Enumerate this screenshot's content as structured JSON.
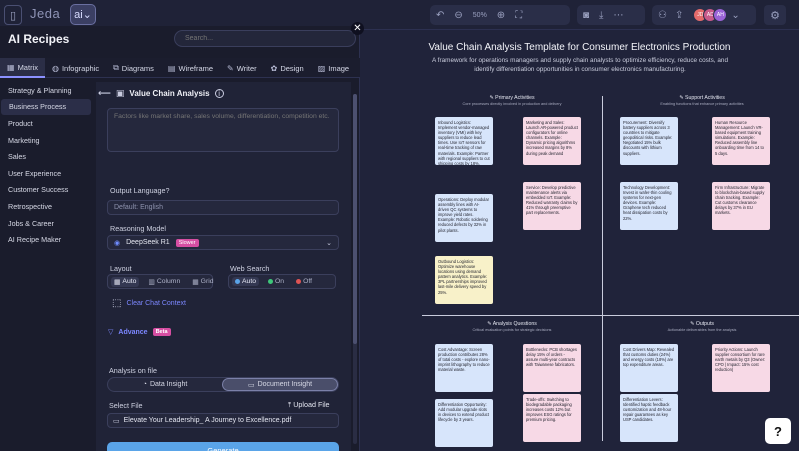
{
  "topbar": {
    "brand": "Jeda",
    "ai_logo": "ai",
    "zoom": "50%",
    "avatars": [
      {
        "initials": "JD",
        "color": "#e46b6b"
      },
      {
        "initials": "AD",
        "color": "#c85a8a"
      },
      {
        "initials": "AH",
        "color": "#9a63d6"
      }
    ]
  },
  "panel": {
    "title": "AI Recipes",
    "search_placeholder": "Search...",
    "tabs": [
      {
        "label": "Matrix",
        "icon": "grid-icon"
      },
      {
        "label": "Infographic",
        "icon": "globe-icon"
      },
      {
        "label": "Diagrams",
        "icon": "diagram-icon"
      },
      {
        "label": "Wireframe",
        "icon": "wireframe-icon"
      },
      {
        "label": "Writer",
        "icon": "pen-icon"
      },
      {
        "label": "Design",
        "icon": "palette-icon"
      },
      {
        "label": "Image",
        "icon": "image-icon"
      }
    ],
    "sidebar": [
      "Strategy & Planning",
      "Business Process",
      "Product",
      "Marketing",
      "Sales",
      "User Experience",
      "Customer Success",
      "Retrospective",
      "Jobs & Career",
      "AI Recipe Maker"
    ],
    "recipe": {
      "title": "Value Chain Analysis",
      "prompt_placeholder": "Factors like market share, sales volume, differentiation, competition etc.",
      "output_language_label": "Output Language?",
      "output_language_placeholder": "Default: English",
      "reasoning_label": "Reasoning Model",
      "reasoning_value": "DeepSeek R1",
      "reasoning_badge": "Slower",
      "layout_label": "Layout",
      "layout_options": [
        "Auto",
        "Column",
        "Grid"
      ],
      "web_search_label": "Web Search",
      "web_search_options": [
        "Auto",
        "On",
        "Off"
      ],
      "clear_chat": "Clear Chat Context",
      "advance": "Advance",
      "advance_badge": "Beta",
      "analysis_label": "Analysis on file",
      "analysis_options": [
        "Data Insight",
        "Document Insight"
      ],
      "select_file_label": "Select File",
      "upload_label": "Upload File",
      "file_name": "Elevate Your Leadership_ A Journey to Excellence.pdf",
      "generate": "Generate"
    }
  },
  "template": {
    "title": "Value Chain Analysis Template for Consumer Electronics Production",
    "subtitle": "A framework for operations managers and supply chain analysts to optimize efficiency, reduce costs, and identify differentiation opportunities in consumer electronics manufacturing.",
    "quadrants": [
      {
        "head": "Primary Activities",
        "desc": "Core processes directly involved in production and delivery"
      },
      {
        "head": "Support Activities",
        "desc": "Enabling functions that enhance primary activities"
      },
      {
        "head": "Analysis Questions",
        "desc": "Critical evaluation points for strategic decisions"
      },
      {
        "head": "Outputs",
        "desc": "Actionable deliverables from the analysis"
      }
    ],
    "notes": {
      "primary": [
        "Inbound Logistics: Implement vendor-managed inventory (VMI) with key suppliers to reduce lead times. Use IoT sensors for real-time tracking of raw materials. Example: Partner with regional suppliers to cut shipping costs by 18%.",
        "Marketing and Sales: Launch AR-powered product configurators for online channels. Example: Dynamic pricing algorithms increased margins by 8% during peak demand",
        "Operations: Deploy modular assembly lines with AI-driven QC systems to improve yield rates. Example: Robotic soldering reduced defects by 32% in pilot plants.",
        "Service: Develop predictive maintenance alerts via embedded IoT. Example: Reduced warranty claims by 41% through preemptive part replacements.",
        "Outbound Logistics: Optimize warehouse locations using demand pattern analytics. Example: 3PL partnerships improved last-mile delivery speed by 25%."
      ],
      "support": [
        "Procurement: Diversify battery suppliers across 3 countries to mitigate geopolitical risks. Example: Negotiated 15% bulk discounts with lithium suppliers.",
        "Human Resource Management: Launch VR-based equipment training simulations. Example: Reduced assembly line onboarding time from 14 to 5 days.",
        "Technology Development: Invest in wafer-thin cooling systems for next-gen devices. Example: Graphene tech reduced heat dissipation costs by 22%.",
        "Firm Infrastructure: Migrate to blockchain-based supply chain tracking. Example: Cut customs clearance delays by 37% in EU markets."
      ],
      "questions": [
        "Cost Advantage: Screen production contributes 28% of total costs - explore nano-imprint lithography to reduce material waste.",
        "Bottlenecks: PCB shortages delay 15% of orders - assure multi-year contracts with Taiwanese fabricators.",
        "Differentiation Opportunity: Add modular upgrade slots in devices to extend product lifecycle by 3 years.",
        "Trade-offs: Switching to biodegradable packaging increases costs 12% but improves ESG ratings for premium pricing."
      ],
      "outputs": [
        "Cost Drivers Map: Revealed that customs duties (24%) and energy costs (18%) are top expenditure areas.",
        "Priority Actions: Launch supplier consortium for rare earth metals by Q3 (Owner: CPO | Impact: 15% cost reduction)",
        "Differentiation Levers: Identified haptic feedback customization and 48-hour repair guarantees as key USP candidates."
      ]
    }
  }
}
